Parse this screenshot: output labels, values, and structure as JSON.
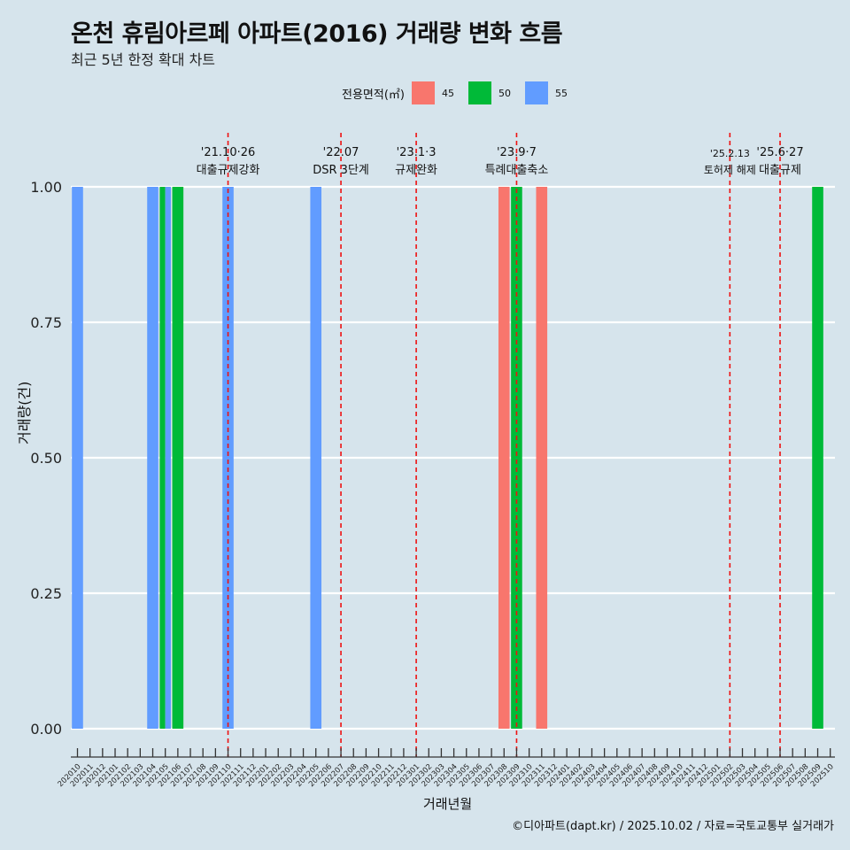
{
  "title": "온천 휴림아르페 아파트(2016) 거래량 변화 흐름",
  "subtitle": "최근 5년 한정 확대 차트",
  "caption": "©디아파트(dapt.kr) / 2025.10.02 / 자료=국토교통부 실거래가",
  "colors": {
    "45": "#f8766d",
    "50": "#00ba38",
    "55": "#619cff",
    "background": "#d6e4ec",
    "vline": "#ee1111"
  },
  "chart_data": {
    "type": "bar",
    "title": "온천 휴림아르페 아파트(2016) 거래량 변화 흐름",
    "xlabel": "거래년월",
    "ylabel": "거래량(건)",
    "ylim": [
      0,
      1
    ],
    "yticks": [
      "0.00",
      "0.25",
      "0.50",
      "0.75",
      "1.00"
    ],
    "legend_title": "전용면적(㎡)",
    "legend": [
      "45",
      "50",
      "55"
    ],
    "categories": [
      "202010",
      "202011",
      "202012",
      "202101",
      "202102",
      "202103",
      "202104",
      "202105",
      "202106",
      "202107",
      "202108",
      "202109",
      "202110",
      "202111",
      "202112",
      "202201",
      "202202",
      "202203",
      "202204",
      "202205",
      "202206",
      "202207",
      "202208",
      "202209",
      "202210",
      "202211",
      "202212",
      "202301",
      "202302",
      "202303",
      "202304",
      "202305",
      "202306",
      "202307",
      "202308",
      "202309",
      "202310",
      "202311",
      "202312",
      "202401",
      "202402",
      "202403",
      "202404",
      "202405",
      "202406",
      "202407",
      "202408",
      "202409",
      "202410",
      "202411",
      "202412",
      "202501",
      "202502",
      "202503",
      "202504",
      "202505",
      "202506",
      "202507",
      "202508",
      "202509",
      "202510"
    ],
    "bars": [
      {
        "month": "202010",
        "area": "55",
        "value": 1
      },
      {
        "month": "202104",
        "area": "55",
        "value": 1
      },
      {
        "month": "202105",
        "area": "50",
        "value": 1
      },
      {
        "month": "202105",
        "area": "55",
        "value": 1
      },
      {
        "month": "202106",
        "area": "50",
        "value": 1
      },
      {
        "month": "202110",
        "area": "55",
        "value": 1
      },
      {
        "month": "202205",
        "area": "55",
        "value": 1
      },
      {
        "month": "202308",
        "area": "45",
        "value": 1
      },
      {
        "month": "202309",
        "area": "50",
        "value": 1
      },
      {
        "month": "202311",
        "area": "45",
        "value": 1
      },
      {
        "month": "202509",
        "area": "50",
        "value": 1
      }
    ],
    "events": [
      {
        "date": "'21.10·26",
        "label": "대출규제강화",
        "x": 12.0
      },
      {
        "date": "'22.07",
        "label": "DSR 3단계",
        "x": 21.0
      },
      {
        "date": "'23.1·3",
        "label": "규제완화",
        "x": 27.0
      },
      {
        "date": "'23.9·7",
        "label": "특례대출축소",
        "x": 35.0
      },
      {
        "date": "'25.2.13",
        "label": "토허제 해제",
        "x": 52.0
      },
      {
        "date": "'25.6·27",
        "label": "대출규제",
        "x": 56.0
      }
    ]
  }
}
